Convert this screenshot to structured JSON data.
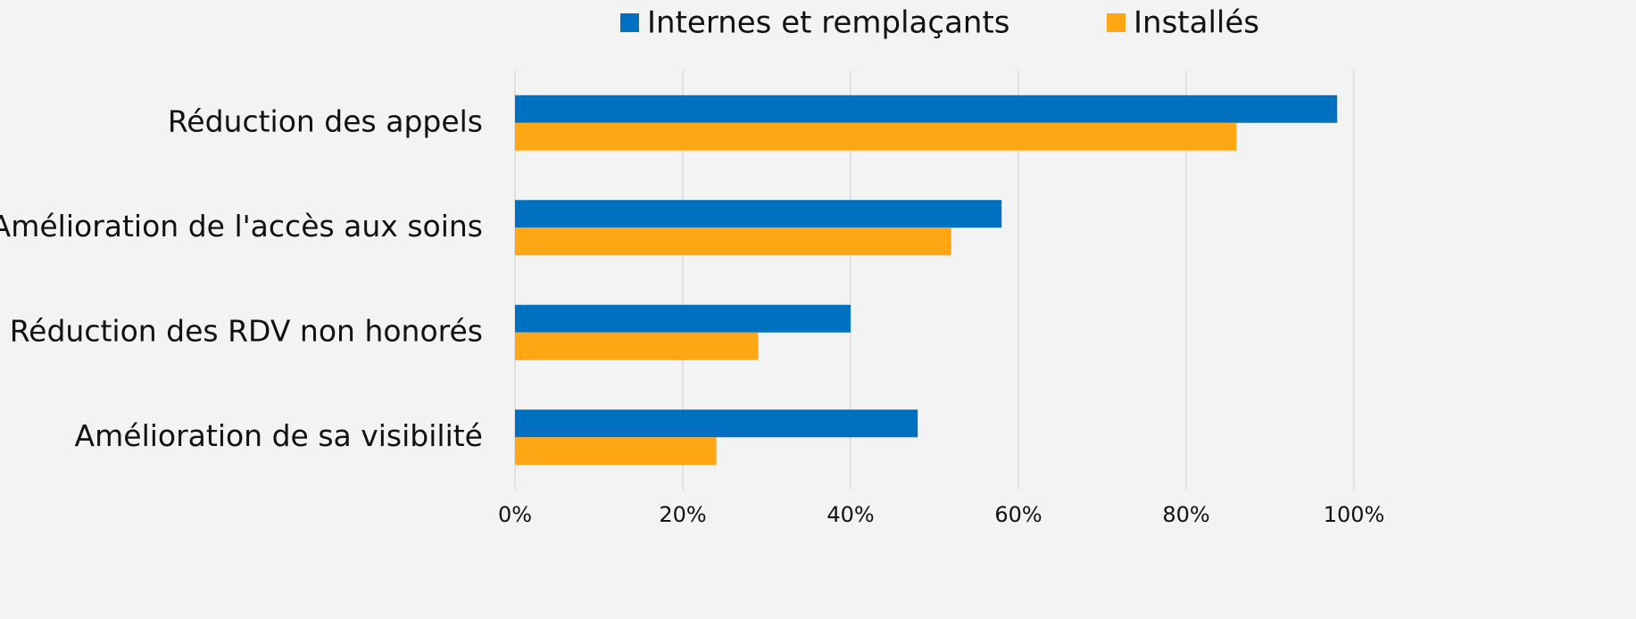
{
  "chart_data": {
    "type": "hbar",
    "categories": [
      "Réduction des appels",
      "Amélioration de l'accès aux soins",
      "Réduction des RDV non honorés",
      "Amélioration de sa visibilité"
    ],
    "series": [
      {
        "name": "Internes et remplaçants",
        "color": "#0070c0",
        "values": [
          98,
          58,
          40,
          48
        ]
      },
      {
        "name": "Installés",
        "color": "#ffa615",
        "values": [
          86,
          52,
          29,
          24
        ]
      }
    ],
    "xlim": [
      0,
      100
    ],
    "xticks": [
      {
        "value": 0,
        "label": "0%"
      },
      {
        "value": 20,
        "label": "20%"
      },
      {
        "value": 40,
        "label": "40%"
      },
      {
        "value": 60,
        "label": "60%"
      },
      {
        "value": 80,
        "label": "80%"
      },
      {
        "value": 100,
        "label": "100%"
      }
    ],
    "grid": true,
    "legend": "top"
  }
}
